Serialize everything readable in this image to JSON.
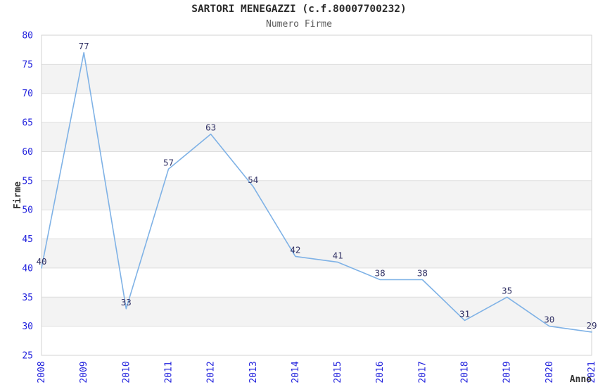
{
  "chart_data": {
    "type": "line",
    "title": "SARTORI MENEGAZZI (c.f.80007700232)",
    "subtitle": "Numero Firme",
    "xlabel": "Anno",
    "ylabel": "Firme",
    "categories": [
      "2008",
      "2009",
      "2010",
      "2011",
      "2012",
      "2013",
      "2014",
      "2015",
      "2016",
      "2017",
      "2018",
      "2019",
      "2020",
      "2021"
    ],
    "series": [
      {
        "name": "Numero Firme",
        "values": [
          40,
          77,
          33,
          57,
          63,
          54,
          42,
          41,
          38,
          38,
          31,
          35,
          30,
          29
        ]
      }
    ],
    "ylim": [
      25,
      80
    ],
    "ytick_step": 5,
    "yticks": [
      25,
      30,
      35,
      40,
      45,
      50,
      55,
      60,
      65,
      70,
      75,
      80
    ],
    "grid": "horizontal",
    "bands": "alternating-5-unit",
    "legend": "none",
    "point_labels_visible": true,
    "colors": {
      "line": "#7fb2e6",
      "tick_label": "#2222dd",
      "point_label": "#333366",
      "band": "#f3f3f3",
      "gridline": "#dddddd",
      "plot_border": "#d3d3d3",
      "title": "#2b2b2b",
      "subtitle": "#5a5a5a",
      "axis_title": "#333333"
    }
  }
}
